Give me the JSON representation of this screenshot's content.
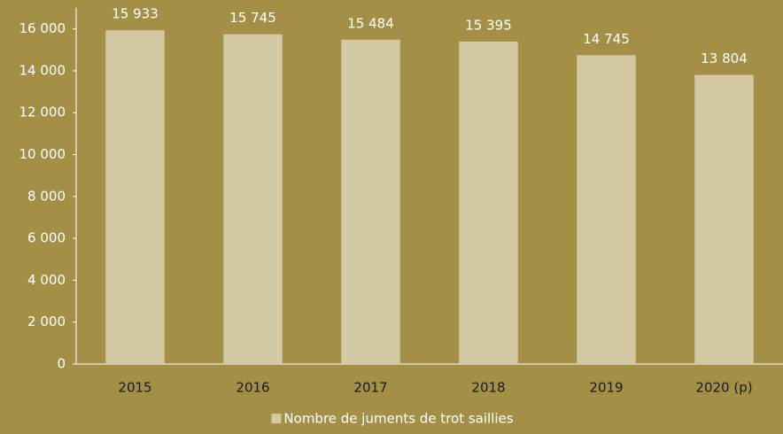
{
  "chart_data": {
    "type": "bar",
    "categories": [
      "2015",
      "2016",
      "2017",
      "2018",
      "2019",
      "2020 (p)"
    ],
    "series": [
      {
        "name": "Nombre de juments de trot saillies",
        "color": "#d3c9a3",
        "values": [
          15933,
          15745,
          15484,
          15395,
          14745,
          13804
        ],
        "value_labels": [
          "15 933",
          "15 745",
          "15 484",
          "15 395",
          "14 745",
          "13 804"
        ]
      }
    ],
    "ylim": [
      0,
      17000
    ],
    "yticks": [
      0,
      {
        "value": 2000,
        "label": "2 000"
      },
      {
        "value": 4000,
        "label": "4 000"
      },
      {
        "value": 6000,
        "label": "6 000"
      },
      {
        "value": 8000,
        "label": "8 000"
      },
      {
        "value": 10000,
        "label": "10 000"
      },
      {
        "value": 12000,
        "label": "12 000"
      },
      {
        "value": 14000,
        "label": "14 000"
      },
      {
        "value": 16000,
        "label": "16 000"
      }
    ],
    "grid": false,
    "legend": "bottom"
  }
}
